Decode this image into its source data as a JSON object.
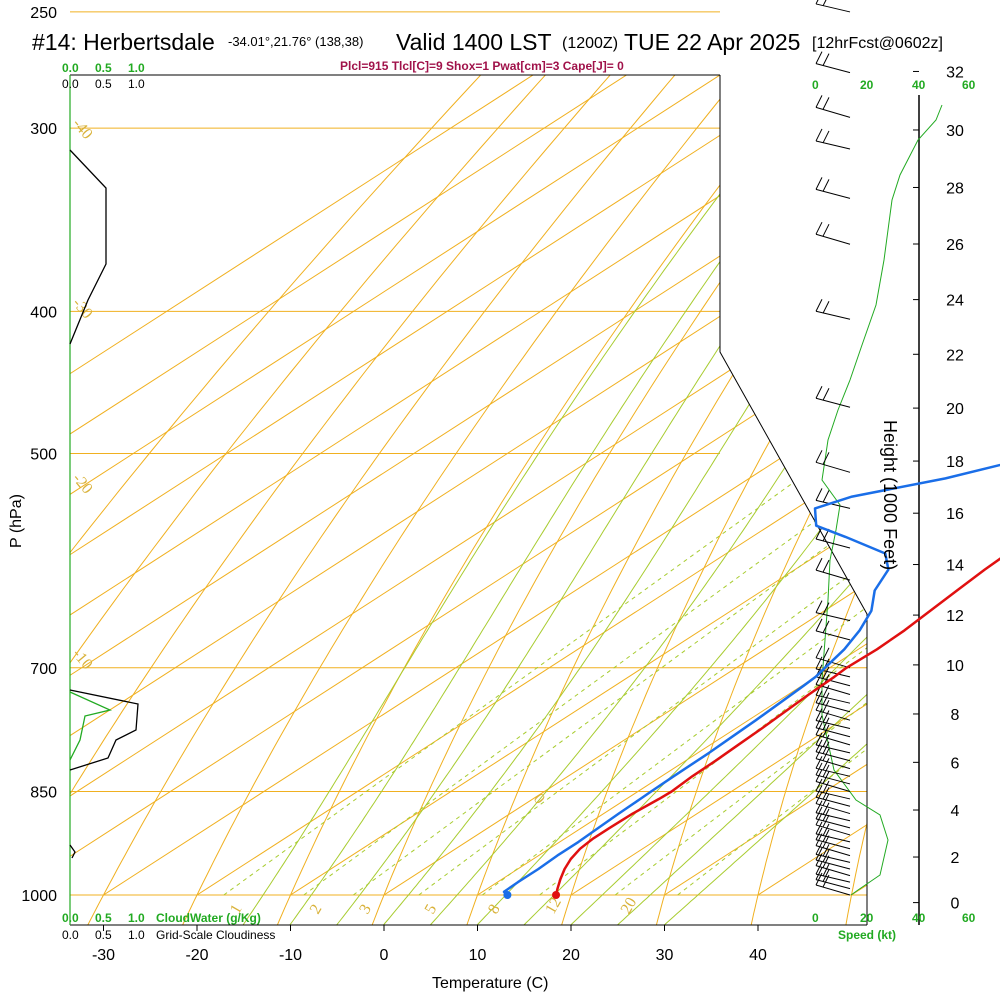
{
  "header": {
    "station": "#14: Herbertsdale",
    "coords": "-34.01°,21.76° (138,38)",
    "valid": "Valid 1400 LST",
    "zulu": "(1200Z)",
    "date": "TUE 22 Apr 2025",
    "forecast": "[12hrFcst@0602z]"
  },
  "indices_line": "Plcl=915 Tlcl[C]=9 Shox=1 Pwat[cm]=3 Cape[J]= 0",
  "cloud_panel": {
    "top_green_ticks": [
      "0.0",
      "0.5",
      "1.0"
    ],
    "top_black_ticks": [
      "0.0",
      "0.5",
      "1.0"
    ],
    "bottom_green_ticks": [
      "0.0",
      "0.5",
      "1.0"
    ],
    "bottom_black_ticks": [
      "0.0",
      "0.5",
      "1.0"
    ],
    "cloudwater_label": "CloudWater (g/Kg)",
    "cloudiness_label": "Grid-Scale Cloudiness"
  },
  "wind_panel": {
    "speed_ticks": [
      "0",
      "20",
      "40",
      "60"
    ],
    "speed_label": "Speed (kt)"
  },
  "colors": {
    "isobar": "#f0b020",
    "isotherm": "#f0b020",
    "dry_adiabat": "#f0b020",
    "moist_adiabat": "#a8cc30",
    "mixing_ratio": "#a8cc30",
    "temperature": "#e01010",
    "dewpoint": "#1a6ee8",
    "cloudwater": "#22aa22",
    "cloudiness": "#000000",
    "wind_speed": "#22aa22"
  },
  "chart_data": {
    "type": "line",
    "xlabel": "Temperature (C)",
    "ylabel": "P (hPa)",
    "y2label": "Height (1000 Feet)",
    "x_ticks": [
      -30,
      -20,
      -10,
      0,
      10,
      20,
      30,
      40
    ],
    "pressure_ticks": [
      250,
      300,
      400,
      500,
      700,
      850,
      1000
    ],
    "height_ticks": [
      0,
      2,
      4,
      6,
      8,
      10,
      12,
      14,
      16,
      18,
      20,
      22,
      24,
      26,
      28,
      30,
      32
    ],
    "xlim": [
      -35,
      46
    ],
    "ylim_hpa": [
      1000,
      250
    ],
    "isotherm_labels": [
      {
        "text": "-40",
        "p": 298
      },
      {
        "text": "-30",
        "p": 395
      },
      {
        "text": "-20",
        "p": 520
      },
      {
        "text": "-10",
        "p": 685
      },
      {
        "text": "0",
        "p": 860
      },
      {
        "text": "10",
        "p": 340
      },
      {
        "text": "20",
        "p": 455
      },
      {
        "text": "30",
        "p": 560
      }
    ],
    "mixing_ratio_labels": [
      "1",
      "2",
      "3",
      "5",
      "8",
      "12",
      "20"
    ],
    "series": [
      {
        "name": "Temperature",
        "points": [
          [
            1000,
            18.4
          ],
          [
            990,
            17.5
          ],
          [
            975,
            16.2
          ],
          [
            960,
            15.0
          ],
          [
            945,
            14.0
          ],
          [
            930,
            13.3
          ],
          [
            915,
            13.0
          ],
          [
            900,
            13.0
          ],
          [
            880,
            13.1
          ],
          [
            860,
            13.5
          ],
          [
            850,
            13.6
          ],
          [
            830,
            13.3
          ],
          [
            810,
            13.2
          ],
          [
            790,
            13.0
          ],
          [
            770,
            12.8
          ],
          [
            750,
            12.5
          ],
          [
            730,
            12.2
          ],
          [
            710,
            12.0
          ],
          [
            700,
            11.8
          ],
          [
            680,
            12.0
          ],
          [
            660,
            11.8
          ],
          [
            640,
            11.3
          ],
          [
            620,
            10.8
          ],
          [
            600,
            10.3
          ],
          [
            580,
            10.0
          ],
          [
            560,
            9.3
          ],
          [
            540,
            8.5
          ],
          [
            520,
            7.8
          ],
          [
            500,
            7.0
          ],
          [
            480,
            6.5
          ],
          [
            460,
            6.3
          ],
          [
            440,
            6.0
          ],
          [
            420,
            5.5
          ],
          [
            400,
            4.5
          ],
          [
            380,
            3.5
          ],
          [
            360,
            2.5
          ],
          [
            340,
            1.5
          ],
          [
            320,
            0.5
          ],
          [
            300,
            -0.5
          ],
          [
            285,
            -1.5
          ],
          [
            270,
            -2.5
          ],
          [
            260,
            -3.2
          ],
          [
            255,
            -4.0
          ]
        ]
      },
      {
        "name": "Dewpoint",
        "points": [
          [
            1000,
            13.2
          ],
          [
            995,
            12.3
          ],
          [
            980,
            12.2
          ],
          [
            960,
            12.2
          ],
          [
            940,
            12.0
          ],
          [
            920,
            12.0
          ],
          [
            900,
            11.8
          ],
          [
            880,
            11.6
          ],
          [
            860,
            11.5
          ],
          [
            850,
            11.4
          ],
          [
            830,
            11.3
          ],
          [
            800,
            11.2
          ],
          [
            780,
            11.0
          ],
          [
            760,
            10.8
          ],
          [
            740,
            10.5
          ],
          [
            720,
            10.2
          ],
          [
            710,
            10.0
          ],
          [
            700,
            9.5
          ],
          [
            680,
            8.5
          ],
          [
            660,
            7.0
          ],
          [
            640,
            5.0
          ],
          [
            620,
            2.0
          ],
          [
            600,
            0.0
          ],
          [
            585,
            -3.0
          ],
          [
            570,
            -10.0
          ],
          [
            560,
            -15.0
          ],
          [
            545,
            -18.0
          ],
          [
            535,
            -16.0
          ],
          [
            520,
            -9.0
          ],
          [
            505,
            -4.0
          ],
          [
            490,
            -3.0
          ],
          [
            470,
            -2.0
          ],
          [
            450,
            -1.0
          ],
          [
            430,
            -2.0
          ],
          [
            400,
            -5.0
          ],
          [
            380,
            -7.5
          ],
          [
            360,
            -10.0
          ],
          [
            340,
            -13.0
          ],
          [
            320,
            -15.5
          ],
          [
            300,
            -18.0
          ],
          [
            285,
            -20.0
          ],
          [
            270,
            -24.0
          ],
          [
            258,
            -28.0
          ]
        ]
      }
    ],
    "wind_barbs_hpa": [
      1000,
      990,
      980,
      970,
      960,
      950,
      940,
      930,
      920,
      910,
      900,
      890,
      880,
      870,
      860,
      850,
      840,
      830,
      820,
      810,
      800,
      790,
      780,
      770,
      760,
      750,
      740,
      730,
      720,
      710,
      700,
      670,
      650,
      610,
      580,
      545,
      515,
      465,
      405,
      360,
      335,
      310,
      295,
      275,
      250
    ]
  }
}
